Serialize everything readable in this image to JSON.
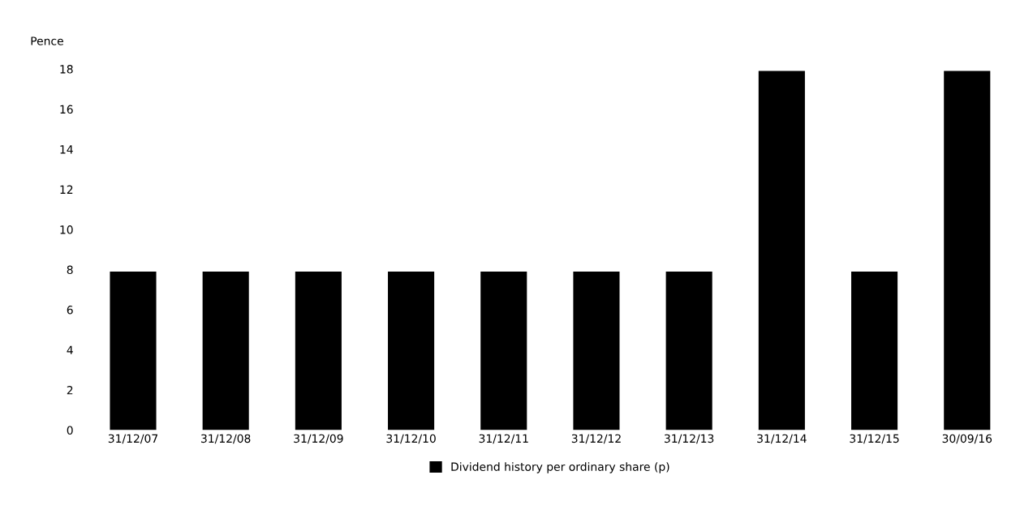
{
  "chart_data": {
    "type": "bar",
    "ylabel": "Pence",
    "categories": [
      "31/12/07",
      "31/12/08",
      "31/12/09",
      "31/12/10",
      "31/12/11",
      "31/12/12",
      "31/12/13",
      "31/12/14",
      "31/12/15",
      "30/09/16"
    ],
    "series": [
      {
        "name": "Dividend history per ordinary share (p)",
        "color": "#000000",
        "values": [
          7.9,
          7.9,
          7.9,
          7.9,
          7.9,
          7.9,
          7.9,
          17.9,
          7.9,
          17.9
        ]
      }
    ],
    "ylim": [
      0,
      18
    ],
    "yticks": [
      0,
      2,
      4,
      6,
      8,
      10,
      12,
      14,
      16,
      18
    ],
    "grid": false,
    "legend": "bottom"
  }
}
